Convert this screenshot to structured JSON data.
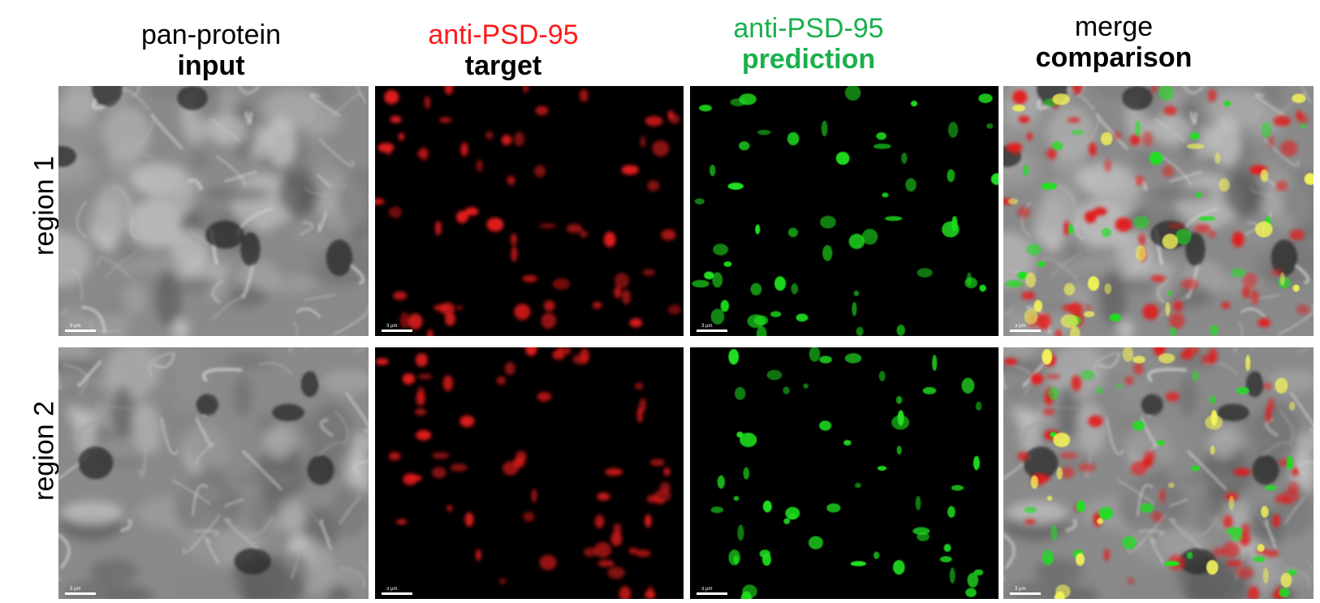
{
  "columns": [
    {
      "line1": "pan-protein",
      "line2": "input",
      "color1": "#000000",
      "color2": "#000000"
    },
    {
      "line1": "anti-PSD-95",
      "line2": "target",
      "color1": "#ff1a1a",
      "color2": "#000000"
    },
    {
      "line1": "anti-PSD-95",
      "line2": "prediction",
      "color1": "#19b04b",
      "color2": "#19b04b"
    },
    {
      "line1": "merge",
      "line2": "comparison",
      "color1": "#000000",
      "color2": "#000000"
    }
  ],
  "rows": [
    {
      "label": "region 1"
    },
    {
      "label": "region 2"
    }
  ],
  "scale_bar_label": "3 µm",
  "colors": {
    "target": "#e21b1b",
    "prediction": "#1fe01f",
    "overlap": "#f2f25a"
  }
}
